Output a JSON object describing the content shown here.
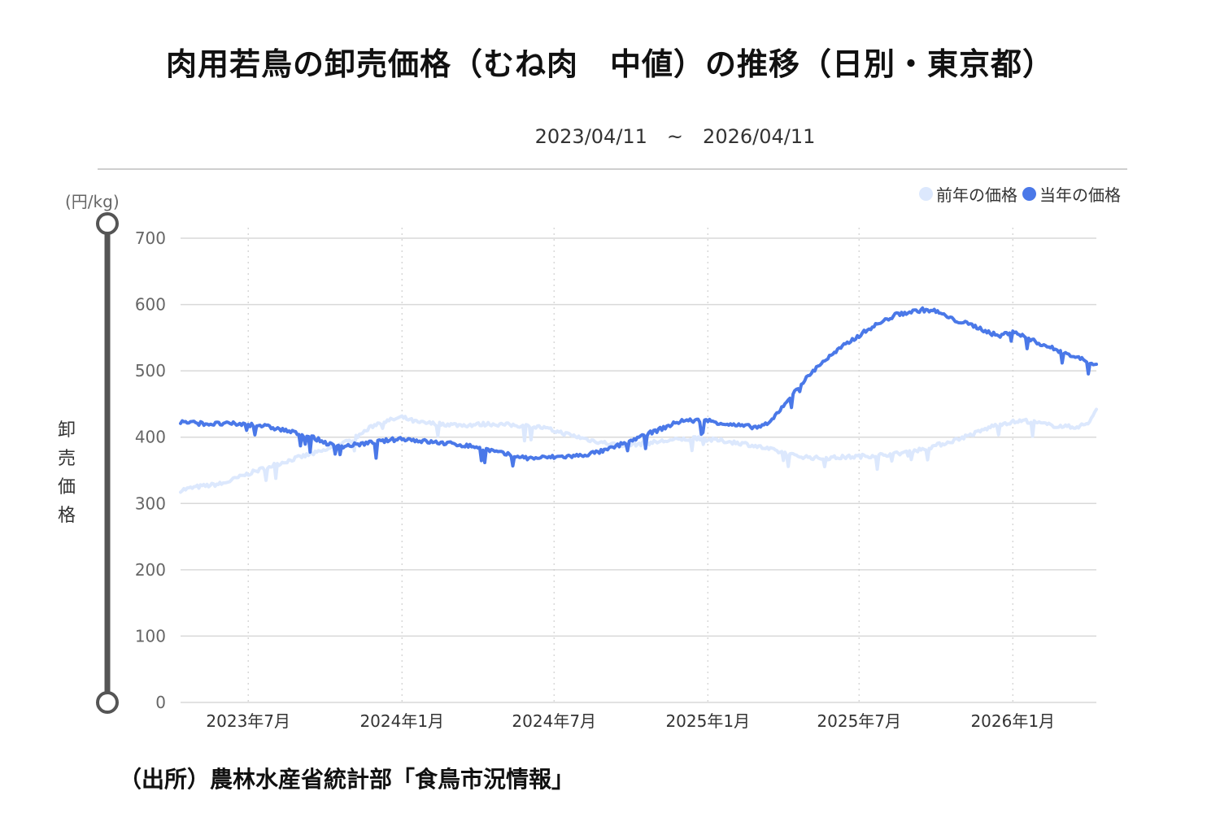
{
  "title": "肉用若鳥の卸売価格（むね肉　中値）の推移（日別・東京都）",
  "date_range": "2023/04/11　~　2026/04/11",
  "unit": "(円/kg)",
  "ylabel": "卸売価格",
  "source": "（出所）農林水産省統計部「食鳥市況情報」",
  "colors": {
    "current": "#4a78e8",
    "previous": "#dce8fd",
    "grid": "#d9d9d9",
    "slider": "#555555"
  },
  "chart_data": {
    "type": "line",
    "title": "肉用若鳥の卸売価格（むね肉　中値）の推移（日別・東京都）",
    "xlabel": "",
    "ylabel": "卸売価格",
    "unit": "(円/kg)",
    "xlim": [
      "2023-04-11",
      "2026-04-11"
    ],
    "ylim": [
      0,
      700
    ],
    "yticks": [
      0,
      100,
      200,
      300,
      400,
      500,
      600,
      700
    ],
    "xticks": [
      {
        "date": "2023-07-01",
        "label": "2023年7月"
      },
      {
        "date": "2024-01-01",
        "label": "2024年1月"
      },
      {
        "date": "2024-07-01",
        "label": "2024年7月"
      },
      {
        "date": "2025-01-01",
        "label": "2025年1月"
      },
      {
        "date": "2025-07-01",
        "label": "2025年7月"
      },
      {
        "date": "2026-01-01",
        "label": "2026年1月"
      }
    ],
    "grid": true,
    "legend": "top-right",
    "series": [
      {
        "name": "前年の価格",
        "color": "#dce8fd",
        "points": [
          [
            "2023-04-11",
            320
          ],
          [
            "2023-05-01",
            325
          ],
          [
            "2023-06-01",
            330
          ],
          [
            "2023-07-01",
            345
          ],
          [
            "2023-08-01",
            358
          ],
          [
            "2023-09-01",
            370
          ],
          [
            "2023-10-01",
            380
          ],
          [
            "2023-11-01",
            395
          ],
          [
            "2023-12-01",
            420
          ],
          [
            "2024-01-01",
            430
          ],
          [
            "2024-01-20",
            422
          ],
          [
            "2024-02-15",
            420
          ],
          [
            "2024-03-15",
            418
          ],
          [
            "2024-04-15",
            420
          ],
          [
            "2024-05-15",
            418
          ],
          [
            "2024-06-15",
            415
          ],
          [
            "2024-07-15",
            405
          ],
          [
            "2024-08-15",
            395
          ],
          [
            "2024-09-15",
            388
          ],
          [
            "2024-10-15",
            390
          ],
          [
            "2024-11-15",
            395
          ],
          [
            "2024-12-15",
            398
          ],
          [
            "2025-01-15",
            395
          ],
          [
            "2025-02-15",
            390
          ],
          [
            "2025-03-15",
            382
          ],
          [
            "2025-04-15",
            372
          ],
          [
            "2025-05-15",
            368
          ],
          [
            "2025-06-15",
            370
          ],
          [
            "2025-07-15",
            372
          ],
          [
            "2025-08-15",
            375
          ],
          [
            "2025-09-15",
            382
          ],
          [
            "2025-10-15",
            392
          ],
          [
            "2025-11-15",
            405
          ],
          [
            "2025-12-15",
            420
          ],
          [
            "2026-01-15",
            425
          ],
          [
            "2026-02-15",
            418
          ],
          [
            "2026-03-15",
            415
          ],
          [
            "2026-04-01",
            420
          ],
          [
            "2026-04-11",
            442
          ]
        ]
      },
      {
        "name": "当年の価格",
        "color": "#4a78e8",
        "points": [
          [
            "2023-04-11",
            423
          ],
          [
            "2023-05-15",
            420
          ],
          [
            "2023-06-15",
            420
          ],
          [
            "2023-07-15",
            418
          ],
          [
            "2023-08-15",
            410
          ],
          [
            "2023-09-15",
            400
          ],
          [
            "2023-10-15",
            385
          ],
          [
            "2023-11-15",
            390
          ],
          [
            "2023-12-15",
            395
          ],
          [
            "2024-01-01",
            398
          ],
          [
            "2024-02-01",
            393
          ],
          [
            "2024-03-01",
            390
          ],
          [
            "2024-04-01",
            385
          ],
          [
            "2024-05-01",
            375
          ],
          [
            "2024-06-01",
            368
          ],
          [
            "2024-07-01",
            370
          ],
          [
            "2024-08-01",
            372
          ],
          [
            "2024-09-01",
            380
          ],
          [
            "2024-10-01",
            395
          ],
          [
            "2024-11-01",
            410
          ],
          [
            "2024-12-01",
            425
          ],
          [
            "2025-01-01",
            425
          ],
          [
            "2025-02-01",
            418
          ],
          [
            "2025-03-01",
            415
          ],
          [
            "2025-03-15",
            420
          ],
          [
            "2025-04-15",
            470
          ],
          [
            "2025-05-15",
            510
          ],
          [
            "2025-06-15",
            540
          ],
          [
            "2025-07-15",
            565
          ],
          [
            "2025-08-15",
            585
          ],
          [
            "2025-09-15",
            592
          ],
          [
            "2025-10-01",
            590
          ],
          [
            "2025-10-20",
            578
          ],
          [
            "2025-11-15",
            568
          ],
          [
            "2025-12-15",
            552
          ],
          [
            "2026-01-01",
            560
          ],
          [
            "2026-01-20",
            548
          ],
          [
            "2026-02-15",
            535
          ],
          [
            "2026-03-15",
            522
          ],
          [
            "2026-04-11",
            510
          ]
        ]
      }
    ]
  }
}
